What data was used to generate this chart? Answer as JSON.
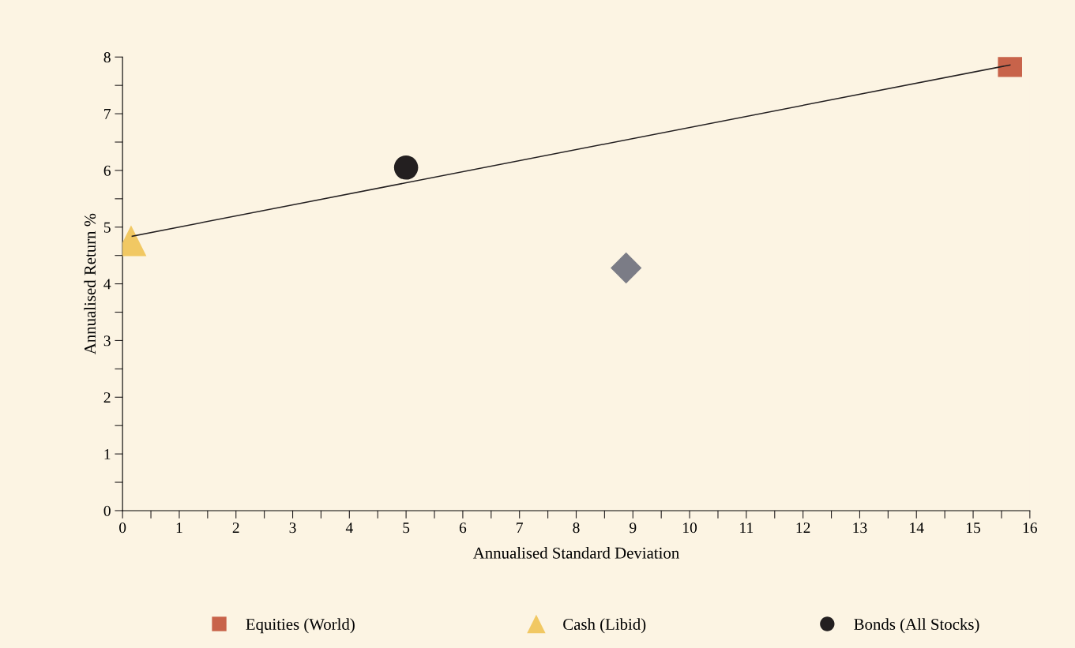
{
  "chart_data": {
    "type": "scatter",
    "xlabel": "Annualised Standard Deviation",
    "ylabel": "Annualised Return %",
    "series": [
      {
        "color": "#7b7c86",
        "marker": "diamond",
        "x": [
          8.88
        ],
        "values": [
          4.28
        ]
      },
      {
        "name": "Equities (World)",
        "color": "#c8634a",
        "marker": "square",
        "x": [
          15.65
        ],
        "values": [
          7.86
        ]
      },
      {
        "name": "Cash (Libid)",
        "color": "#f1c863",
        "marker": "triangle",
        "x": [
          0.15
        ],
        "values": [
          4.76
        ]
      },
      {
        "name": "Bonds (All Stocks)",
        "color": "#231f20",
        "marker": "circle",
        "x": [
          5.0
        ],
        "values": [
          6.05
        ]
      },
      {
        "type": "line",
        "color": "#231f20",
        "marker": "none",
        "line_style": "solid",
        "x": [
          0.17,
          15.65
        ],
        "values": [
          4.84,
          7.86
        ]
      }
    ],
    "xlim": [
      0,
      16
    ],
    "ylim": [
      0,
      8
    ],
    "xticks": [
      0,
      {
        "value": 0.5,
        "label": null
      },
      1,
      {
        "value": 1.5,
        "label": null
      },
      2,
      {
        "value": 2.5,
        "label": null
      },
      3,
      {
        "value": 3.5,
        "label": null
      },
      4,
      {
        "value": 4.5,
        "label": null
      },
      5,
      {
        "value": 5.5,
        "label": null
      },
      6,
      {
        "value": 6.5,
        "label": null
      },
      7,
      {
        "value": 7.5,
        "label": null
      },
      8,
      {
        "value": 8.5,
        "label": null
      },
      9,
      {
        "value": 9.5,
        "label": null
      },
      10,
      {
        "value": 10.5,
        "label": null
      },
      11,
      {
        "value": 11.5,
        "label": null
      },
      12,
      {
        "value": 12.5,
        "label": null
      },
      13,
      {
        "value": 13.5,
        "label": null
      },
      14,
      {
        "value": 14.5,
        "label": null
      },
      15,
      {
        "value": 15.5,
        "label": null
      },
      16
    ],
    "yticks": [
      0,
      {
        "value": 0.5,
        "label": null
      },
      1,
      {
        "value": 1.5,
        "label": null
      },
      2,
      {
        "value": 2.5,
        "label": null
      },
      3,
      {
        "value": 3.5,
        "label": null
      },
      4,
      {
        "value": 4.5,
        "label": null
      },
      5,
      {
        "value": 5.5,
        "label": null
      },
      6,
      {
        "value": 6.5,
        "label": null
      },
      7,
      {
        "value": 7.5,
        "label": null
      },
      8
    ],
    "grid": false,
    "legend": "bottom"
  }
}
